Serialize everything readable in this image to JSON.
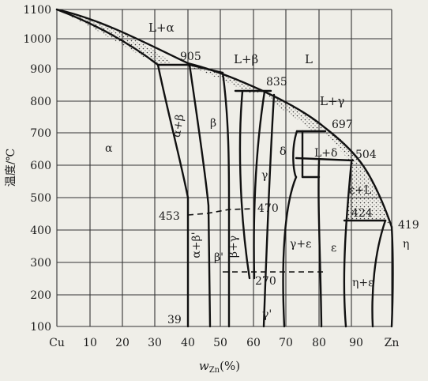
{
  "diagram": {
    "type": "phase-diagram",
    "y_axis": {
      "label": "温度/℃",
      "ticks": [
        "1100",
        "1000",
        "900",
        "800",
        "700",
        "600",
        "500",
        "400",
        "300",
        "200",
        "100"
      ]
    },
    "x_axis": {
      "label": "w",
      "label_subscript": "Zn",
      "label_suffix": "(%)",
      "ticks": [
        "Cu",
        "10",
        "20",
        "30",
        "40",
        "50",
        "60",
        "70",
        "80",
        "90",
        "Zn"
      ]
    },
    "phase_labels": {
      "L_alpha": "L+α",
      "L": "L",
      "L_beta": "L+β",
      "L_gamma": "L+γ",
      "alpha": "α",
      "alpha_beta": "α+β",
      "beta": "β",
      "gamma": "γ",
      "delta": "δ",
      "L_delta": "L+δ",
      "epsilon_L": "ε+L",
      "gamma_epsilon": "γ+ε",
      "epsilon": "ε",
      "eta": "η",
      "eta_epsilon": "η+ε",
      "alpha_beta_prime": "α+β'",
      "beta_prime": "β'",
      "beta_gamma": "β+γ",
      "gamma_prime": "γ'"
    },
    "temperatures": {
      "t905": "905",
      "t835": "835",
      "t697": "697",
      "t504": "504",
      "t424": "424",
      "t419": "419",
      "t470": "470",
      "t453": "453",
      "t270": "270",
      "c39": "39"
    },
    "colors": {
      "background": "#efeee8",
      "line": "#111111"
    }
  }
}
